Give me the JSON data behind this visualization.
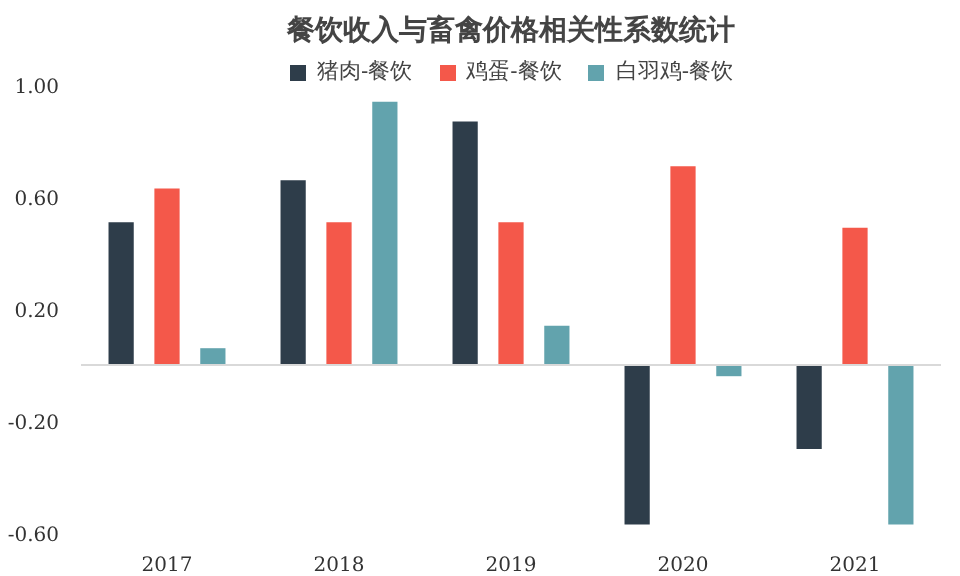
{
  "chart_data": {
    "type": "bar",
    "title": "餐饮收入与畜禽价格相关性系数统计",
    "categories": [
      "2017",
      "2018",
      "2019",
      "2020",
      "2021"
    ],
    "series": [
      {
        "name": "猪肉-餐饮",
        "color": "#2e3d4a",
        "values": [
          0.51,
          0.66,
          0.87,
          -0.57,
          -0.3
        ]
      },
      {
        "name": "鸡蛋-餐饮",
        "color": "#f4584a",
        "values": [
          0.63,
          0.51,
          0.51,
          0.71,
          0.49
        ]
      },
      {
        "name": "白羽鸡-餐饮",
        "color": "#62a3ad",
        "values": [
          0.06,
          0.94,
          0.14,
          -0.04,
          -0.57
        ]
      }
    ],
    "ylim": [
      -0.6,
      1.1
    ],
    "yticks": [
      {
        "value": 1.0,
        "label": "1.00"
      },
      {
        "value": 0.6,
        "label": "0.60"
      },
      {
        "value": 0.2,
        "label": "0.20"
      },
      {
        "value": -0.2,
        "label": "-0.20"
      },
      {
        "value": -0.6,
        "label": "-0.60"
      }
    ],
    "ref_lines": [
      {
        "axis": "y",
        "value": 0,
        "color": "#d9d9d9"
      }
    ],
    "grid": false,
    "legend": "top"
  }
}
